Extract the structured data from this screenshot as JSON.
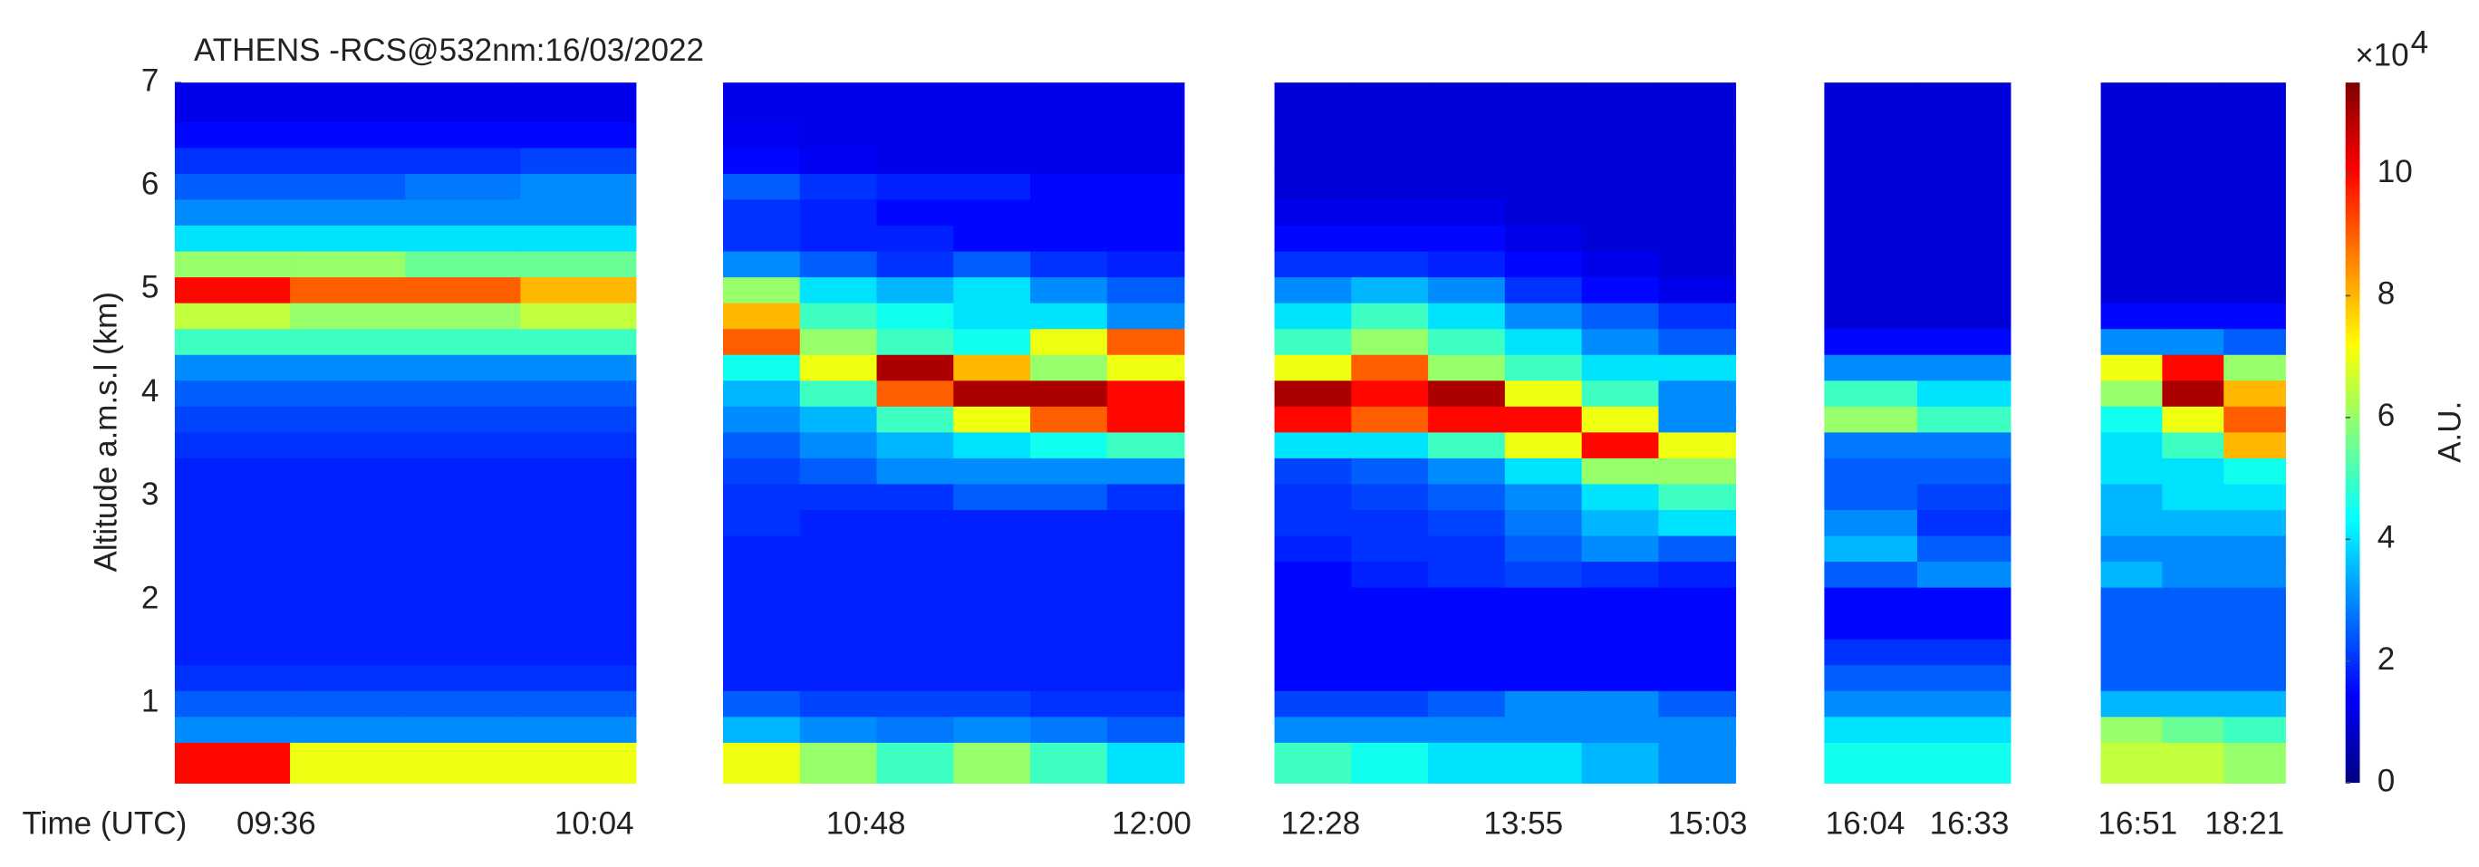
{
  "chart_data": {
    "type": "heatmap",
    "title": "ATHENS -RCS@532nm:16/03/2022",
    "ylabel": "Altitude a.m.s.l (km)",
    "xlabel": "Time (UTC)",
    "colorbar_label": "A.U.",
    "colorbar_scale_base": "×10",
    "colorbar_scale_exponent": "4",
    "ylim": [
      0.23,
      7
    ],
    "yticks": [
      1,
      2,
      3,
      4,
      5,
      6,
      7
    ],
    "clim": [
      0,
      11.5
    ],
    "cticks": [
      0,
      2,
      4,
      6,
      8,
      10
    ],
    "colormap": "jet",
    "y": [
      0.5,
      0.75,
      1.0,
      1.25,
      1.5,
      1.75,
      2.0,
      2.25,
      2.5,
      2.75,
      3.0,
      3.25,
      3.5,
      3.75,
      4.0,
      4.25,
      4.5,
      4.75,
      5.0,
      5.25,
      5.5,
      5.75,
      6.0,
      6.25,
      6.5,
      6.75
    ],
    "panels": [
      {
        "x_labels": [
          "09:36",
          "10:04"
        ],
        "values": [
          [
            10,
            7,
            7,
            7
          ],
          [
            3,
            3,
            3,
            3
          ],
          [
            2.5,
            2.5,
            2.5,
            2.5
          ],
          [
            2,
            2,
            2,
            2
          ],
          [
            1.8,
            1.8,
            1.8,
            1.8
          ],
          [
            1.8,
            1.8,
            1.8,
            1.8
          ],
          [
            1.8,
            1.8,
            1.8,
            1.8
          ],
          [
            1.8,
            1.8,
            1.8,
            1.8
          ],
          [
            1.8,
            1.8,
            1.8,
            1.8
          ],
          [
            1.8,
            1.8,
            1.8,
            1.8
          ],
          [
            1.8,
            1.8,
            1.8,
            1.8
          ],
          [
            1.8,
            1.8,
            1.8,
            1.8
          ],
          [
            2,
            2,
            2,
            2
          ],
          [
            2.2,
            2.2,
            2.2,
            2.2
          ],
          [
            2.5,
            2.5,
            2.5,
            2.5
          ],
          [
            3,
            3,
            3,
            3
          ],
          [
            5,
            5,
            5,
            5
          ],
          [
            6.5,
            6,
            6,
            6.5
          ],
          [
            10,
            9,
            9,
            8
          ],
          [
            6,
            6,
            5.5,
            5.5
          ],
          [
            4,
            4,
            4,
            4
          ],
          [
            3,
            3,
            3,
            3
          ],
          [
            2.5,
            2.5,
            2.8,
            3
          ],
          [
            2,
            2,
            2,
            2.2
          ],
          [
            1.5,
            1.5,
            1.5,
            1.5
          ],
          [
            1.2,
            1.2,
            1.2,
            1.2
          ]
        ]
      },
      {
        "x_labels": [
          "10:48",
          "12:00"
        ],
        "values": [
          [
            7,
            6,
            5,
            6,
            5,
            4
          ],
          [
            3.5,
            3,
            2.8,
            3,
            2.8,
            2.5
          ],
          [
            2.5,
            2.2,
            2.2,
            2.2,
            2,
            2
          ],
          [
            1.8,
            1.8,
            1.8,
            1.8,
            1.8,
            1.8
          ],
          [
            1.8,
            1.8,
            1.8,
            1.8,
            1.8,
            1.8
          ],
          [
            1.8,
            1.8,
            1.8,
            1.8,
            1.8,
            1.8
          ],
          [
            1.8,
            1.8,
            1.8,
            1.8,
            1.8,
            1.8
          ],
          [
            1.8,
            1.8,
            1.8,
            1.8,
            1.8,
            1.8
          ],
          [
            1.8,
            1.8,
            1.8,
            1.8,
            1.8,
            1.8
          ],
          [
            2,
            1.8,
            1.8,
            1.8,
            1.8,
            1.8
          ],
          [
            2,
            2,
            2,
            2.5,
            2.5,
            2
          ],
          [
            2.2,
            2.5,
            3,
            3,
            3,
            3
          ],
          [
            2.5,
            3,
            3.5,
            4,
            4.5,
            5
          ],
          [
            3,
            3.5,
            5,
            7,
            9,
            10
          ],
          [
            3.5,
            5,
            9,
            11,
            11,
            10
          ],
          [
            4.5,
            7,
            11,
            8,
            6,
            7
          ],
          [
            9,
            6,
            5,
            4.5,
            7,
            9
          ],
          [
            8,
            5,
            4.5,
            4,
            4,
            3
          ],
          [
            6,
            4,
            3.5,
            4,
            3,
            2.5
          ],
          [
            3,
            2.5,
            2,
            2.5,
            2,
            1.8
          ],
          [
            2,
            1.8,
            1.8,
            1.5,
            1.5,
            1.5
          ],
          [
            2,
            1.8,
            1.5,
            1.5,
            1.5,
            1.5
          ],
          [
            2.5,
            2,
            1.8,
            1.8,
            1.5,
            1.5
          ],
          [
            1.5,
            1.3,
            1.2,
            1.2,
            1.2,
            1.2
          ],
          [
            1.3,
            1.2,
            1.2,
            1.2,
            1.2,
            1.2
          ],
          [
            1.2,
            1.2,
            1.2,
            1.2,
            1.2,
            1.2
          ]
        ]
      },
      {
        "x_labels": [
          "12:28",
          "13:55",
          "15:03"
        ],
        "values": [
          [
            5,
            4.5,
            4,
            4,
            3.5,
            3
          ],
          [
            3,
            3,
            3,
            3,
            3,
            3
          ],
          [
            2.2,
            2.2,
            2.5,
            3,
            3,
            2.5
          ],
          [
            1.5,
            1.5,
            1.5,
            1.5,
            1.5,
            1.5
          ],
          [
            1.5,
            1.5,
            1.5,
            1.5,
            1.5,
            1.5
          ],
          [
            1.5,
            1.5,
            1.5,
            1.5,
            1.5,
            1.5
          ],
          [
            1.5,
            1.5,
            1.5,
            1.5,
            1.5,
            1.5
          ],
          [
            1.5,
            1.8,
            2,
            2.2,
            2,
            1.8
          ],
          [
            1.8,
            2,
            2,
            2.5,
            3,
            2.5
          ],
          [
            2,
            2,
            2.2,
            2.8,
            3.5,
            4
          ],
          [
            2,
            2.2,
            2.5,
            3,
            4,
            5
          ],
          [
            2.2,
            2.5,
            3,
            4,
            6,
            6
          ],
          [
            4,
            4,
            5,
            7,
            10,
            7
          ],
          [
            10,
            9,
            10,
            10,
            7,
            3
          ],
          [
            11,
            10,
            11,
            7,
            5,
            3
          ],
          [
            7,
            9,
            6,
            5,
            4,
            4
          ],
          [
            5,
            6,
            5,
            4,
            3,
            2.5
          ],
          [
            4,
            5,
            4,
            3,
            2.5,
            2
          ],
          [
            3,
            3.5,
            3,
            2,
            1.5,
            1.2
          ],
          [
            2,
            2,
            1.8,
            1.5,
            1.2,
            1
          ],
          [
            1.5,
            1.5,
            1.5,
            1.2,
            1,
            1
          ],
          [
            1.2,
            1.2,
            1.2,
            1,
            1,
            1
          ],
          [
            1,
            1,
            1,
            1,
            1,
            1
          ],
          [
            1,
            1,
            1,
            1,
            1,
            1
          ],
          [
            1,
            1,
            1,
            1,
            1,
            1
          ],
          [
            1,
            1,
            1,
            1,
            1,
            1
          ]
        ]
      },
      {
        "x_labels": [
          "16:04",
          "16:33"
        ],
        "values": [
          [
            4.5,
            4.5
          ],
          [
            4,
            4
          ],
          [
            3,
            3
          ],
          [
            2.5,
            2.5
          ],
          [
            2,
            2
          ],
          [
            1.5,
            1.5
          ],
          [
            1.5,
            1.5
          ],
          [
            2.5,
            3
          ],
          [
            3.5,
            2.5
          ],
          [
            3,
            2
          ],
          [
            2.5,
            2.2
          ],
          [
            2.5,
            2.5
          ],
          [
            2.8,
            2.8
          ],
          [
            6,
            5
          ],
          [
            5,
            4
          ],
          [
            3,
            3
          ],
          [
            1.5,
            1.5
          ],
          [
            1,
            1
          ],
          [
            1,
            1
          ],
          [
            1,
            1
          ],
          [
            1,
            1
          ],
          [
            1,
            1
          ],
          [
            1,
            1
          ],
          [
            1,
            1
          ],
          [
            1,
            1
          ],
          [
            1,
            1
          ]
        ]
      },
      {
        "x_labels": [
          "16:51",
          "18:21"
        ],
        "values": [
          [
            6.5,
            6.5,
            6
          ],
          [
            6,
            5.5,
            5
          ],
          [
            3.5,
            3.5,
            3.5
          ],
          [
            2.5,
            2.5,
            2.5
          ],
          [
            2.5,
            2.5,
            2.5
          ],
          [
            2.5,
            2.5,
            2.5
          ],
          [
            2.5,
            2.5,
            2.5
          ],
          [
            3.5,
            3,
            3
          ],
          [
            3,
            3,
            3
          ],
          [
            3.5,
            3.5,
            3.5
          ],
          [
            3.5,
            4,
            4
          ],
          [
            4,
            4,
            4.5
          ],
          [
            4,
            5,
            8
          ],
          [
            4.5,
            7,
            9
          ],
          [
            6,
            11,
            8
          ],
          [
            7,
            10,
            6
          ],
          [
            3,
            3,
            2.5
          ],
          [
            1.5,
            1.5,
            1.5
          ],
          [
            1,
            1,
            1
          ],
          [
            1,
            1,
            1
          ],
          [
            1,
            1,
            1
          ],
          [
            1,
            1,
            1
          ],
          [
            1,
            1,
            1
          ],
          [
            1,
            1,
            1
          ],
          [
            1,
            1,
            1
          ],
          [
            1,
            1,
            1
          ]
        ]
      }
    ]
  }
}
